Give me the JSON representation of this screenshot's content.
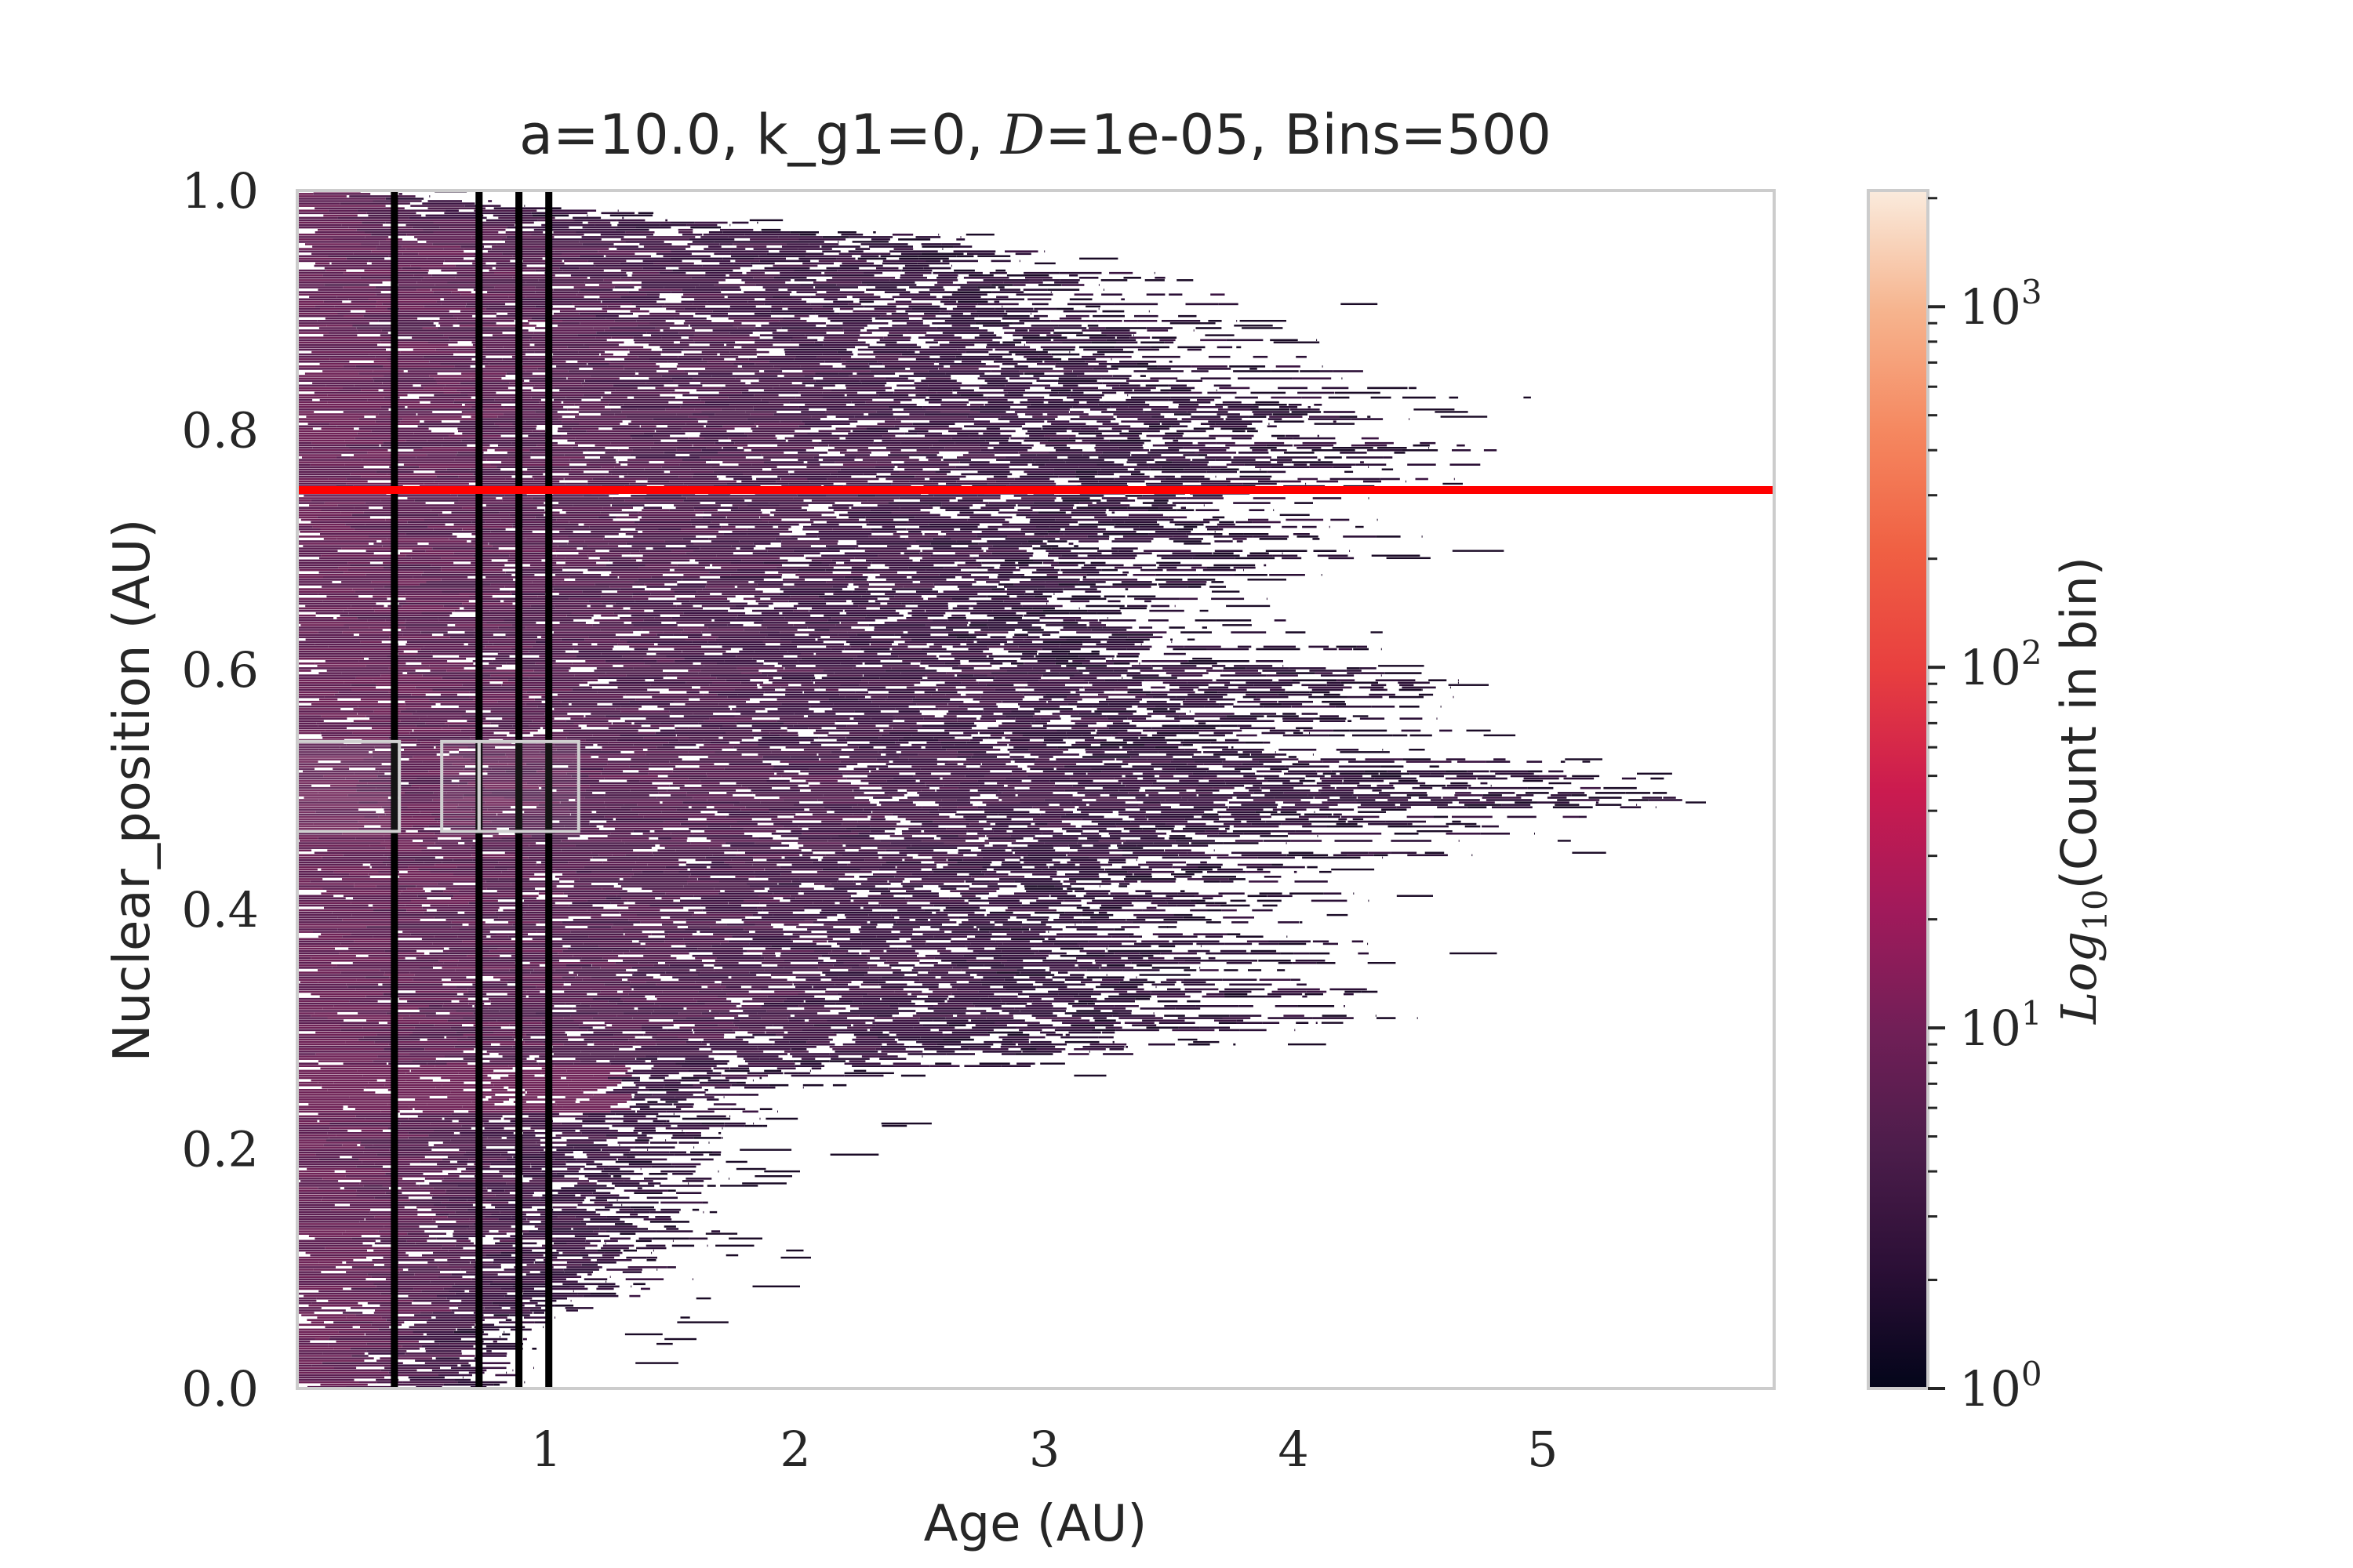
{
  "chart_data": {
    "type": "heatmap",
    "title": "a=10.0, k_g1=0, D=1e-05, Bins=500",
    "title_parts": {
      "prefix": "a=10.0, k_g1=0, ",
      "italic": "D",
      "suffix": "=1e-05, Bins=500"
    },
    "xlabel": "Age (AU)",
    "ylabel": "Nuclear_position (AU)",
    "xlim": [
      0.0,
      5.93
    ],
    "ylim": [
      0.0,
      1.0
    ],
    "xticks": [
      1,
      2,
      3,
      4,
      5
    ],
    "xtick_labels": [
      "1",
      "2",
      "3",
      "4",
      "5"
    ],
    "yticks": [
      0.0,
      0.2,
      0.4,
      0.6,
      0.8,
      1.0
    ],
    "ytick_labels": [
      "0.0",
      "0.2",
      "0.4",
      "0.6",
      "0.8",
      "1.0"
    ],
    "grid": false,
    "bins": 500,
    "horizontal_line": {
      "y": 0.75,
      "color": "#ff0000"
    },
    "vertical_lines": {
      "x": [
        0.39,
        0.73,
        0.89,
        1.01
      ],
      "color": "#000000"
    },
    "overlay_boxes": [
      {
        "x0": 0.0,
        "x1": 0.41,
        "y0": 0.465,
        "y1": 0.54
      },
      {
        "x0": 0.58,
        "x1": 0.73,
        "y0": 0.465,
        "y1": 0.54
      },
      {
        "x0": 0.73,
        "x1": 1.13,
        "y0": 0.465,
        "y1": 0.54
      }
    ],
    "density_profile": {
      "description_y": [
        0.0,
        0.05,
        0.1,
        0.15,
        0.2,
        0.25,
        0.3,
        0.35,
        0.4,
        0.45,
        0.5,
        0.55,
        0.6,
        0.65,
        0.7,
        0.75,
        0.8,
        0.85,
        0.9,
        0.95,
        1.0
      ],
      "max_age": [
        0.3,
        3.3,
        3.9,
        4.3,
        5.1,
        4.7,
        4.4,
        4.0,
        4.6,
        4.7,
        5.9,
        4.8,
        4.2,
        4.4,
        4.6,
        2.1,
        1.8,
        1.7,
        1.7,
        1.0,
        0.9
      ]
    },
    "colorbar": {
      "label_prefix": "Log",
      "label_sub": "10",
      "label_suffix": "(Count in bin)",
      "scale": "log",
      "range": [
        1,
        2100
      ],
      "tick_values": [
        1,
        10,
        100,
        1000
      ],
      "tick_labels": [
        {
          "base": "10",
          "exp": "0"
        },
        {
          "base": "10",
          "exp": "1"
        },
        {
          "base": "10",
          "exp": "2"
        },
        {
          "base": "10",
          "exp": "3"
        }
      ],
      "colors": [
        "#03051a",
        "#2b0f36",
        "#4c1d4b",
        "#711f57",
        "#a11a5b",
        "#cb1b4f",
        "#e83f3f",
        "#f06043",
        "#f58860",
        "#f6b48e",
        "#faebdd"
      ]
    }
  }
}
